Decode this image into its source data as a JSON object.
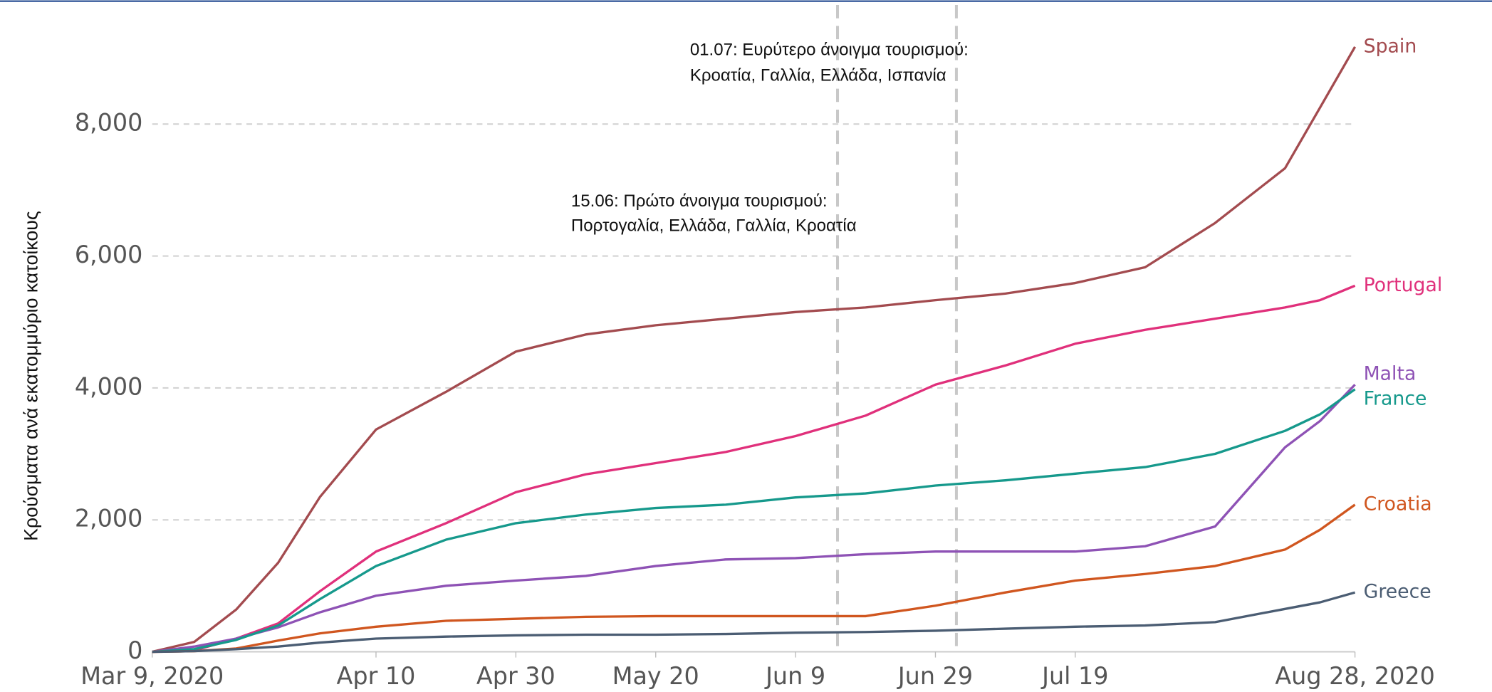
{
  "chart_data": {
    "type": "line",
    "y_label": "Κρούσματα ανά εκατομμύριο κατοίκους",
    "x": [
      "2020-03-09",
      "2020-03-15",
      "2020-03-21",
      "2020-03-27",
      "2020-04-02",
      "2020-04-10",
      "2020-04-20",
      "2020-04-30",
      "2020-05-10",
      "2020-05-20",
      "2020-05-30",
      "2020-06-09",
      "2020-06-19",
      "2020-06-29",
      "2020-07-09",
      "2020-07-19",
      "2020-07-29",
      "2020-08-08",
      "2020-08-18",
      "2020-08-23",
      "2020-08-28"
    ],
    "xlim": [
      "2020-03-09",
      "2020-08-28"
    ],
    "xticks": [
      {
        "value": "2020-03-09",
        "label": "Mar 9, 2020"
      },
      {
        "value": "2020-04-10",
        "label": "Apr 10"
      },
      {
        "value": "2020-04-30",
        "label": "Apr 30"
      },
      {
        "value": "2020-05-20",
        "label": "May 20"
      },
      {
        "value": "2020-06-09",
        "label": "Jun 9"
      },
      {
        "value": "2020-06-29",
        "label": "Jun 29"
      },
      {
        "value": "2020-07-19",
        "label": "Jul 19"
      },
      {
        "value": "2020-08-28",
        "label": "Aug 28, 2020"
      }
    ],
    "ylim": [
      0,
      9300
    ],
    "yticks": [
      0,
      {
        "value": 2000,
        "label": "2,000"
      },
      {
        "value": 4000,
        "label": "4,000"
      },
      {
        "value": 6000,
        "label": "6,000"
      },
      {
        "value": 8000,
        "label": "8,000"
      }
    ],
    "grid": true,
    "series": [
      {
        "name": "Spain",
        "color": "#a34b4f",
        "values": [
          0,
          150,
          640,
          1350,
          2350,
          3370,
          3940,
          4550,
          4810,
          4950,
          5050,
          5150,
          5220,
          5330,
          5430,
          5590,
          5830,
          6500,
          7330,
          8250,
          9170
        ]
      },
      {
        "name": "Portugal",
        "color": "#e0307b",
        "values": [
          0,
          20,
          200,
          430,
          920,
          1520,
          1950,
          2420,
          2690,
          2860,
          3030,
          3270,
          3580,
          4050,
          4340,
          4670,
          4880,
          5050,
          5220,
          5330,
          5550
        ]
      },
      {
        "name": "Malta",
        "color": "#8e52b5",
        "values": [
          0,
          80,
          200,
          370,
          600,
          850,
          1000,
          1080,
          1150,
          1300,
          1400,
          1420,
          1480,
          1520,
          1520,
          1520,
          1600,
          1900,
          3100,
          3500,
          4050
        ]
      },
      {
        "name": "France",
        "color": "#16998c",
        "values": [
          0,
          40,
          180,
          400,
          800,
          1300,
          1700,
          1950,
          2080,
          2180,
          2230,
          2340,
          2400,
          2520,
          2600,
          2700,
          2800,
          3000,
          3350,
          3600,
          3980
        ]
      },
      {
        "name": "Croatia",
        "color": "#d0561f",
        "values": [
          0,
          10,
          50,
          170,
          280,
          380,
          470,
          500,
          530,
          540,
          540,
          540,
          540,
          700,
          900,
          1080,
          1180,
          1300,
          1550,
          1850,
          2230
        ]
      },
      {
        "name": "Greece",
        "color": "#4b5d73",
        "values": [
          0,
          10,
          40,
          80,
          140,
          200,
          230,
          250,
          260,
          260,
          270,
          290,
          300,
          320,
          350,
          380,
          400,
          450,
          650,
          750,
          900
        ]
      }
    ],
    "annotations": [
      {
        "x": "2020-06-15",
        "text": [
          "15.06: Πρώτο άνοιγμα τουρισμού:",
          "Πορτογαλία, Ελλάδα, Γαλλία, Κροατία"
        ]
      },
      {
        "x": "2020-07-02",
        "text": [
          "01.07: Ευρύτερο άνοιγμα τουρισμού:",
          "Κροατία, Γαλλία, Ελλάδα, Ισπανία"
        ]
      }
    ]
  }
}
